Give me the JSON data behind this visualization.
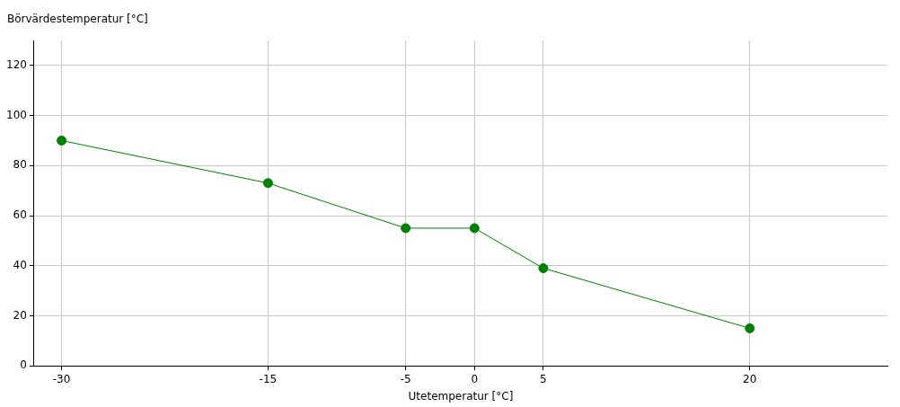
{
  "chart_data": {
    "type": "line",
    "xlabel": "Utetemperatur [°C]",
    "ylabel": "Börvärdestemperatur [°C]",
    "x": [
      -30,
      -15,
      -5,
      0,
      5,
      20
    ],
    "series": [
      {
        "color": "#008000",
        "values": [
          90,
          73,
          55,
          55,
          39,
          15
        ]
      }
    ],
    "xlim": [
      -32,
      30
    ],
    "xticks": [
      -30,
      -15,
      -5,
      0,
      5,
      20
    ],
    "ylim": [
      0,
      130
    ],
    "yticks": [
      0,
      20,
      40,
      60,
      80,
      100,
      120
    ],
    "grid": true,
    "legend": false,
    "marker": "circle",
    "line_style": "solid"
  }
}
